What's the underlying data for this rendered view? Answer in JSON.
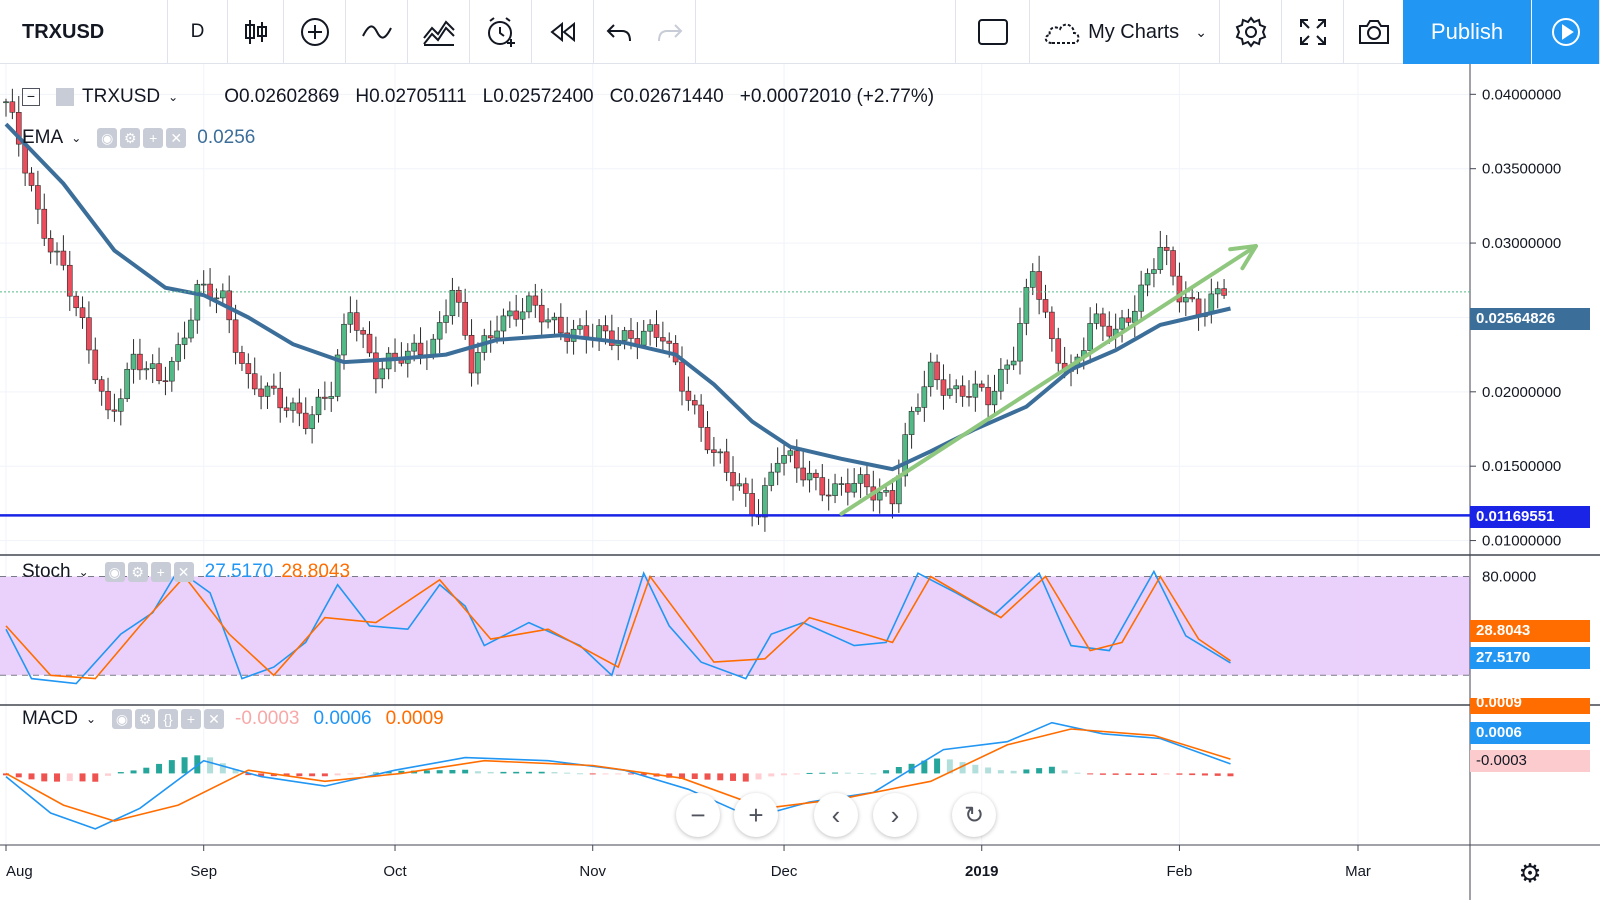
{
  "toolbar": {
    "symbol": "TRXUSD",
    "interval": "D",
    "my_charts_label": "My Charts",
    "publish_label": "Publish"
  },
  "price_legend": {
    "symbol": "TRXUSD",
    "open": "O0.02602869",
    "high": "H0.02705111",
    "low": "L0.02572400",
    "close": "C0.02671440",
    "change": "+0.00072010 (+2.77%)"
  },
  "ema_legend": {
    "name": "EMA",
    "value": "0.0256"
  },
  "stoch_legend": {
    "name": "Stoch",
    "k": "27.5170",
    "d": "28.8043"
  },
  "macd_legend": {
    "name": "MACD",
    "hist": "-0.0003",
    "macd": "0.0006",
    "signal": "0.0009"
  },
  "price_tags": {
    "ema": "0.02564826",
    "support": "0.01169551",
    "stoch_d": "28.8043",
    "stoch_k": "27.5170",
    "macd_signal": "0.0009",
    "macd_line": "0.0006",
    "macd_hist": "-0.0003"
  },
  "colors": {
    "up": "#53b987",
    "down": "#eb4d5c",
    "ema": "#3c6e9a",
    "support": "#1a24e6",
    "trend": "#8fc77e",
    "stoch_k": "#2196f3",
    "stoch_d": "#ff6d00",
    "stoch_band": "#e8ccfb",
    "publish": "#2196f3"
  },
  "chart_data": [
    {
      "type": "candlestick",
      "title": "TRXUSD",
      "interval": "D",
      "x_labels": [
        "Aug",
        "Sep",
        "Oct",
        "Nov",
        "Dec",
        "2019",
        "Feb",
        "Mar"
      ],
      "y_ticks": [
        "0.04000000",
        "0.03500000",
        "0.03000000",
        "0.02500000",
        "0.02000000",
        "0.01500000",
        "0.01000000"
      ],
      "ylim": [
        0.0095,
        0.0415
      ],
      "close_path": [
        {
          "date": "2018-08-01",
          "value": 0.0395
        },
        {
          "date": "2018-08-06",
          "value": 0.0318
        },
        {
          "date": "2018-08-10",
          "value": 0.0285
        },
        {
          "date": "2018-08-14",
          "value": 0.0225
        },
        {
          "date": "2018-08-17",
          "value": 0.0185
        },
        {
          "date": "2018-08-21",
          "value": 0.0222
        },
        {
          "date": "2018-08-25",
          "value": 0.0205
        },
        {
          "date": "2018-08-28",
          "value": 0.023
        },
        {
          "date": "2018-08-31",
          "value": 0.0268
        },
        {
          "date": "2018-09-04",
          "value": 0.026
        },
        {
          "date": "2018-09-08",
          "value": 0.021
        },
        {
          "date": "2018-09-13",
          "value": 0.019
        },
        {
          "date": "2018-09-17",
          "value": 0.0185
        },
        {
          "date": "2018-09-21",
          "value": 0.02
        },
        {
          "date": "2018-09-24",
          "value": 0.0255
        },
        {
          "date": "2018-09-28",
          "value": 0.0218
        },
        {
          "date": "2018-10-03",
          "value": 0.0222
        },
        {
          "date": "2018-10-07",
          "value": 0.0235
        },
        {
          "date": "2018-10-10",
          "value": 0.027
        },
        {
          "date": "2018-10-13",
          "value": 0.0215
        },
        {
          "date": "2018-10-17",
          "value": 0.025
        },
        {
          "date": "2018-10-22",
          "value": 0.0255
        },
        {
          "date": "2018-10-27",
          "value": 0.0245
        },
        {
          "date": "2018-11-01",
          "value": 0.0235
        },
        {
          "date": "2018-11-07",
          "value": 0.024
        },
        {
          "date": "2018-11-12",
          "value": 0.0235
        },
        {
          "date": "2018-11-16",
          "value": 0.02
        },
        {
          "date": "2018-11-20",
          "value": 0.0155
        },
        {
          "date": "2018-11-24",
          "value": 0.0135
        },
        {
          "date": "2018-11-27",
          "value": 0.0122
        },
        {
          "date": "2018-11-30",
          "value": 0.0155
        },
        {
          "date": "2018-12-05",
          "value": 0.0145
        },
        {
          "date": "2018-12-09",
          "value": 0.0132
        },
        {
          "date": "2018-12-14",
          "value": 0.0138
        },
        {
          "date": "2018-12-18",
          "value": 0.013
        },
        {
          "date": "2018-12-21",
          "value": 0.018
        },
        {
          "date": "2018-12-24",
          "value": 0.0215
        },
        {
          "date": "2018-12-28",
          "value": 0.02
        },
        {
          "date": "2019-01-02",
          "value": 0.0195
        },
        {
          "date": "2019-01-06",
          "value": 0.023
        },
        {
          "date": "2019-01-09",
          "value": 0.028
        },
        {
          "date": "2019-01-12",
          "value": 0.023
        },
        {
          "date": "2019-01-15",
          "value": 0.0215
        },
        {
          "date": "2019-01-18",
          "value": 0.0245
        },
        {
          "date": "2019-01-22",
          "value": 0.0238
        },
        {
          "date": "2019-01-26",
          "value": 0.027
        },
        {
          "date": "2019-01-29",
          "value": 0.0295
        },
        {
          "date": "2019-02-01",
          "value": 0.0265
        },
        {
          "date": "2019-02-04",
          "value": 0.0258
        },
        {
          "date": "2019-02-08",
          "value": 0.0267
        }
      ],
      "ema_path": [
        {
          "date": "2018-08-01",
          "value": 0.038
        },
        {
          "date": "2018-08-10",
          "value": 0.034
        },
        {
          "date": "2018-08-18",
          "value": 0.0295
        },
        {
          "date": "2018-08-26",
          "value": 0.027
        },
        {
          "date": "2018-09-01",
          "value": 0.0265
        },
        {
          "date": "2018-09-08",
          "value": 0.025
        },
        {
          "date": "2018-09-15",
          "value": 0.0232
        },
        {
          "date": "2018-09-23",
          "value": 0.022
        },
        {
          "date": "2018-10-01",
          "value": 0.0222
        },
        {
          "date": "2018-10-09",
          "value": 0.0225
        },
        {
          "date": "2018-10-17",
          "value": 0.0235
        },
        {
          "date": "2018-10-27",
          "value": 0.0238
        },
        {
          "date": "2018-11-06",
          "value": 0.0233
        },
        {
          "date": "2018-11-14",
          "value": 0.0225
        },
        {
          "date": "2018-11-20",
          "value": 0.0205
        },
        {
          "date": "2018-11-26",
          "value": 0.018
        },
        {
          "date": "2018-12-02",
          "value": 0.0163
        },
        {
          "date": "2018-12-10",
          "value": 0.0155
        },
        {
          "date": "2018-12-18",
          "value": 0.0148
        },
        {
          "date": "2018-12-24",
          "value": 0.016
        },
        {
          "date": "2018-12-31",
          "value": 0.0175
        },
        {
          "date": "2019-01-08",
          "value": 0.019
        },
        {
          "date": "2019-01-15",
          "value": 0.0215
        },
        {
          "date": "2019-01-22",
          "value": 0.0228
        },
        {
          "date": "2019-01-29",
          "value": 0.0245
        },
        {
          "date": "2019-02-05",
          "value": 0.0252
        },
        {
          "date": "2019-02-09",
          "value": 0.0256
        }
      ],
      "support_level": 0.01169551,
      "last_price": 0.0267144,
      "trendline": [
        {
          "date": "2018-12-10",
          "value": 0.0118
        },
        {
          "date": "2019-02-13",
          "value": 0.0298
        }
      ]
    },
    {
      "type": "line",
      "title": "Stoch",
      "band": [
        20,
        80
      ],
      "y_ticks": [
        "80.0000"
      ],
      "series": [
        {
          "name": "%K",
          "color": "#2196f3",
          "values": [
            {
              "date": "2018-08-01",
              "value": 48
            },
            {
              "date": "2018-08-05",
              "value": 18
            },
            {
              "date": "2018-08-12",
              "value": 15
            },
            {
              "date": "2018-08-19",
              "value": 45
            },
            {
              "date": "2018-08-24",
              "value": 58
            },
            {
              "date": "2018-08-28",
              "value": 84
            },
            {
              "date": "2018-09-02",
              "value": 70
            },
            {
              "date": "2018-09-07",
              "value": 18
            },
            {
              "date": "2018-09-12",
              "value": 25
            },
            {
              "date": "2018-09-17",
              "value": 40
            },
            {
              "date": "2018-09-22",
              "value": 75
            },
            {
              "date": "2018-09-27",
              "value": 50
            },
            {
              "date": "2018-10-03",
              "value": 48
            },
            {
              "date": "2018-10-08",
              "value": 75
            },
            {
              "date": "2018-10-12",
              "value": 62
            },
            {
              "date": "2018-10-15",
              "value": 38
            },
            {
              "date": "2018-10-22",
              "value": 52
            },
            {
              "date": "2018-10-30",
              "value": 38
            },
            {
              "date": "2018-11-04",
              "value": 20
            },
            {
              "date": "2018-11-09",
              "value": 82
            },
            {
              "date": "2018-11-13",
              "value": 50
            },
            {
              "date": "2018-11-18",
              "value": 28
            },
            {
              "date": "2018-11-25",
              "value": 18
            },
            {
              "date": "2018-11-29",
              "value": 45
            },
            {
              "date": "2018-12-04",
              "value": 52
            },
            {
              "date": "2018-12-12",
              "value": 38
            },
            {
              "date": "2018-12-17",
              "value": 40
            },
            {
              "date": "2018-12-22",
              "value": 82
            },
            {
              "date": "2018-12-28",
              "value": 70
            },
            {
              "date": "2019-01-03",
              "value": 57
            },
            {
              "date": "2019-01-10",
              "value": 82
            },
            {
              "date": "2019-01-15",
              "value": 38
            },
            {
              "date": "2019-01-21",
              "value": 35
            },
            {
              "date": "2019-01-28",
              "value": 83
            },
            {
              "date": "2019-02-02",
              "value": 44
            },
            {
              "date": "2019-02-09",
              "value": 27.517
            }
          ]
        },
        {
          "name": "%D",
          "color": "#ff6d00",
          "values": [
            {
              "date": "2018-08-01",
              "value": 50
            },
            {
              "date": "2018-08-08",
              "value": 20
            },
            {
              "date": "2018-08-15",
              "value": 18
            },
            {
              "date": "2018-08-22",
              "value": 50
            },
            {
              "date": "2018-08-29",
              "value": 80
            },
            {
              "date": "2018-09-05",
              "value": 45
            },
            {
              "date": "2018-09-12",
              "value": 20
            },
            {
              "date": "2018-09-20",
              "value": 55
            },
            {
              "date": "2018-09-28",
              "value": 52
            },
            {
              "date": "2018-10-08",
              "value": 78
            },
            {
              "date": "2018-10-16",
              "value": 42
            },
            {
              "date": "2018-10-25",
              "value": 48
            },
            {
              "date": "2018-11-05",
              "value": 25
            },
            {
              "date": "2018-11-10",
              "value": 80
            },
            {
              "date": "2018-11-20",
              "value": 28
            },
            {
              "date": "2018-11-28",
              "value": 30
            },
            {
              "date": "2018-12-05",
              "value": 55
            },
            {
              "date": "2018-12-18",
              "value": 40
            },
            {
              "date": "2018-12-24",
              "value": 80
            },
            {
              "date": "2019-01-04",
              "value": 55
            },
            {
              "date": "2019-01-11",
              "value": 80
            },
            {
              "date": "2019-01-18",
              "value": 35
            },
            {
              "date": "2019-01-23",
              "value": 40
            },
            {
              "date": "2019-01-29",
              "value": 80
            },
            {
              "date": "2019-02-04",
              "value": 42
            },
            {
              "date": "2019-02-09",
              "value": 28.8043
            }
          ]
        }
      ]
    },
    {
      "type": "line",
      "title": "MACD",
      "series": [
        {
          "name": "MACD",
          "color": "#2196f3",
          "values": [
            {
              "date": "2018-08-01",
              "value": -0.0002
            },
            {
              "date": "2018-08-08",
              "value": -0.0025
            },
            {
              "date": "2018-08-15",
              "value": -0.0035
            },
            {
              "date": "2018-08-22",
              "value": -0.0022
            },
            {
              "date": "2018-09-01",
              "value": 0.0008
            },
            {
              "date": "2018-09-10",
              "value": -0.0002
            },
            {
              "date": "2018-09-20",
              "value": -0.0008
            },
            {
              "date": "2018-10-01",
              "value": 0.0002
            },
            {
              "date": "2018-10-12",
              "value": 0.001
            },
            {
              "date": "2018-10-25",
              "value": 0.0008
            },
            {
              "date": "2018-11-06",
              "value": 0.0002
            },
            {
              "date": "2018-11-16",
              "value": -0.001
            },
            {
              "date": "2018-11-26",
              "value": -0.0028
            },
            {
              "date": "2018-12-05",
              "value": -0.0018
            },
            {
              "date": "2018-12-15",
              "value": -0.0012
            },
            {
              "date": "2018-12-26",
              "value": 0.0015
            },
            {
              "date": "2019-01-05",
              "value": 0.002
            },
            {
              "date": "2019-01-12",
              "value": 0.0032
            },
            {
              "date": "2019-01-20",
              "value": 0.0025
            },
            {
              "date": "2019-01-29",
              "value": 0.0022
            },
            {
              "date": "2019-02-09",
              "value": 0.0006
            }
          ]
        },
        {
          "name": "Signal",
          "color": "#ff6d00",
          "values": [
            {
              "date": "2018-08-01",
              "value": 0.0
            },
            {
              "date": "2018-08-10",
              "value": -0.002
            },
            {
              "date": "2018-08-18",
              "value": -0.003
            },
            {
              "date": "2018-08-28",
              "value": -0.002
            },
            {
              "date": "2018-09-08",
              "value": 0.0002
            },
            {
              "date": "2018-09-20",
              "value": -0.0005
            },
            {
              "date": "2018-10-02",
              "value": 0.0
            },
            {
              "date": "2018-10-15",
              "value": 0.0008
            },
            {
              "date": "2018-11-01",
              "value": 0.0005
            },
            {
              "date": "2018-11-15",
              "value": -0.0003
            },
            {
              "date": "2018-11-28",
              "value": -0.0022
            },
            {
              "date": "2018-12-10",
              "value": -0.0016
            },
            {
              "date": "2018-12-24",
              "value": -0.0005
            },
            {
              "date": "2019-01-05",
              "value": 0.0018
            },
            {
              "date": "2019-01-15",
              "value": 0.0028
            },
            {
              "date": "2019-01-28",
              "value": 0.0024
            },
            {
              "date": "2019-02-09",
              "value": 0.0009
            }
          ]
        }
      ]
    }
  ]
}
